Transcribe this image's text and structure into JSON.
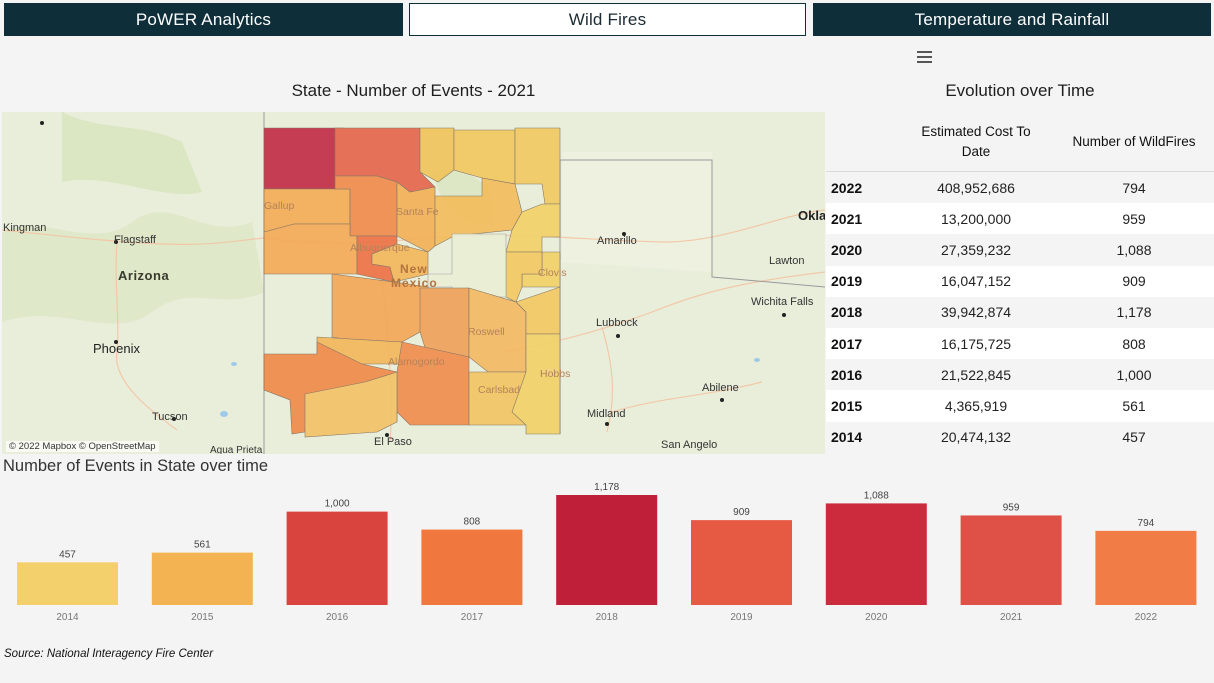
{
  "nav": {
    "tabs": [
      {
        "label": "PoWER Analytics",
        "active": false
      },
      {
        "label": "Wild Fires",
        "active": true
      },
      {
        "label": "Temperature and Rainfall",
        "active": false
      }
    ]
  },
  "map_panel": {
    "title": "State - Number of Events - 2021",
    "attribution": "© 2022 Mapbox © OpenStreetMap",
    "labels": {
      "arizona": "Arizona",
      "new": "New",
      "mexico": "Mexico",
      "flagstaff": "Flagstaff",
      "phoenix": "Phoenix",
      "tucson": "Tucson",
      "kingman": "Kingman",
      "gallup": "Gallup",
      "santa_fe": "Santa Fe",
      "albuquerque": "Albuquerque",
      "alamogordo": "Alamogordo",
      "roswell": "Roswell",
      "carlsbad": "Carlsbad",
      "clovis": "Clovis",
      "hobbs": "Hobbs",
      "el_paso": "El Paso",
      "amarillo": "Amarillo",
      "lubbock": "Lubbock",
      "midland": "Midland",
      "abilene": "Abilene",
      "san_angelo": "San Angelo",
      "wichita_falls": "Wichita Falls",
      "lawton": "Lawton",
      "okla": "Okla",
      "agua_prieta": "Agua Prieta"
    }
  },
  "table": {
    "title": "Evolution over Time",
    "col_cost": "Estimated Cost To Date",
    "col_num": "Number of WildFires",
    "rows": [
      {
        "year": "2022",
        "cost": "408,952,686",
        "num": "794"
      },
      {
        "year": "2021",
        "cost": "13,200,000",
        "num": "959"
      },
      {
        "year": "2020",
        "cost": "27,359,232",
        "num": "1,088"
      },
      {
        "year": "2019",
        "cost": "16,047,152",
        "num": "909"
      },
      {
        "year": "2018",
        "cost": "39,942,874",
        "num": "1,178"
      },
      {
        "year": "2017",
        "cost": "16,175,725",
        "num": "808"
      },
      {
        "year": "2016",
        "cost": "21,522,845",
        "num": "1,000"
      },
      {
        "year": "2015",
        "cost": "4,365,919",
        "num": "561"
      },
      {
        "year": "2014",
        "cost": "20,474,132",
        "num": "457"
      }
    ]
  },
  "bar_panel": {
    "title": "Number of Events in State over time"
  },
  "chart_data": {
    "type": "bar",
    "title": "Number of Events in State over time",
    "categories": [
      "2014",
      "2015",
      "2016",
      "2017",
      "2018",
      "2019",
      "2020",
      "2021",
      "2022"
    ],
    "values": [
      457,
      561,
      1000,
      808,
      1178,
      909,
      1088,
      959,
      794
    ],
    "value_labels": [
      "457",
      "561",
      "1,000",
      "808",
      "1,178",
      "909",
      "1,088",
      "959",
      "794"
    ],
    "colors": [
      "#f3d06b",
      "#f4b352",
      "#d9443f",
      "#f0783e",
      "#c01f3a",
      "#e65a44",
      "#cc2b3e",
      "#df5147",
      "#f17c46"
    ],
    "ylim": [
      0,
      1178
    ],
    "grid": false
  },
  "source": "Source: National Interagency Fire Center"
}
